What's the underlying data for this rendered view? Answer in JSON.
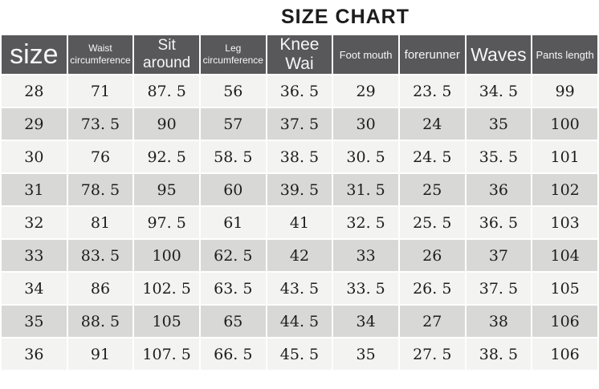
{
  "title": "SIZE CHART",
  "colors": {
    "header-bg": "#58585a",
    "row-light": "#f3f3f1",
    "row-dark": "#d8d8d6",
    "title-color": "#1c1c1c"
  },
  "table": {
    "headers": [
      {
        "id": "size",
        "label": "size"
      },
      {
        "id": "waist-circumference",
        "label": "Waist\ncircumference"
      },
      {
        "id": "sit-around",
        "label": "Sit around"
      },
      {
        "id": "leg-circumference",
        "label": "Leg\ncircumference"
      },
      {
        "id": "knee-wai",
        "label": "Knee Wai"
      },
      {
        "id": "foot-mouth",
        "label": "Foot mouth"
      },
      {
        "id": "forerunner",
        "label": "forerunner"
      },
      {
        "id": "waves",
        "label": "Waves"
      },
      {
        "id": "pants-length",
        "label": "Pants length"
      }
    ],
    "rows": [
      [
        "28",
        "71",
        "87. 5",
        "56",
        "36. 5",
        "29",
        "23. 5",
        "34. 5",
        "99"
      ],
      [
        "29",
        "73. 5",
        "90",
        "57",
        "37. 5",
        "30",
        "24",
        "35",
        "100"
      ],
      [
        "30",
        "76",
        "92. 5",
        "58. 5",
        "38. 5",
        "30. 5",
        "24. 5",
        "35. 5",
        "101"
      ],
      [
        "31",
        "78. 5",
        "95",
        "60",
        "39. 5",
        "31. 5",
        "25",
        "36",
        "102"
      ],
      [
        "32",
        "81",
        "97. 5",
        "61",
        "41",
        "32. 5",
        "25. 5",
        "36. 5",
        "103"
      ],
      [
        "33",
        "83. 5",
        "100",
        "62. 5",
        "42",
        "33",
        "26",
        "37",
        "104"
      ],
      [
        "34",
        "86",
        "102. 5",
        "63. 5",
        "43. 5",
        "33. 5",
        "26. 5",
        "37. 5",
        "105"
      ],
      [
        "35",
        "88. 5",
        "105",
        "65",
        "44. 5",
        "34",
        "27",
        "38",
        "106"
      ],
      [
        "36",
        "91",
        "107. 5",
        "66. 5",
        "45. 5",
        "35",
        "27. 5",
        "38. 5",
        "106"
      ]
    ]
  },
  "chart_data": {
    "type": "table",
    "title": "SIZE CHART",
    "columns": [
      "size",
      "Waist circumference",
      "Sit around",
      "Leg circumference",
      "Knee Wai",
      "Foot mouth",
      "forerunner",
      "Waves",
      "Pants length"
    ],
    "rows": [
      [
        28,
        71,
        87.5,
        56,
        36.5,
        29,
        23.5,
        34.5,
        99
      ],
      [
        29,
        73.5,
        90,
        57,
        37.5,
        30,
        24,
        35,
        100
      ],
      [
        30,
        76,
        92.5,
        58.5,
        38.5,
        30.5,
        24.5,
        35.5,
        101
      ],
      [
        31,
        78.5,
        95,
        60,
        39.5,
        31.5,
        25,
        36,
        102
      ],
      [
        32,
        81,
        97.5,
        61,
        41,
        32.5,
        25.5,
        36.5,
        103
      ],
      [
        33,
        83.5,
        100,
        62.5,
        42,
        33,
        26,
        37,
        104
      ],
      [
        34,
        86,
        102.5,
        63.5,
        43.5,
        33.5,
        26.5,
        37.5,
        105
      ],
      [
        35,
        88.5,
        105,
        65,
        44.5,
        34,
        27,
        38,
        106
      ],
      [
        36,
        91,
        107.5,
        66.5,
        45.5,
        35,
        27.5,
        38.5,
        106
      ]
    ]
  }
}
